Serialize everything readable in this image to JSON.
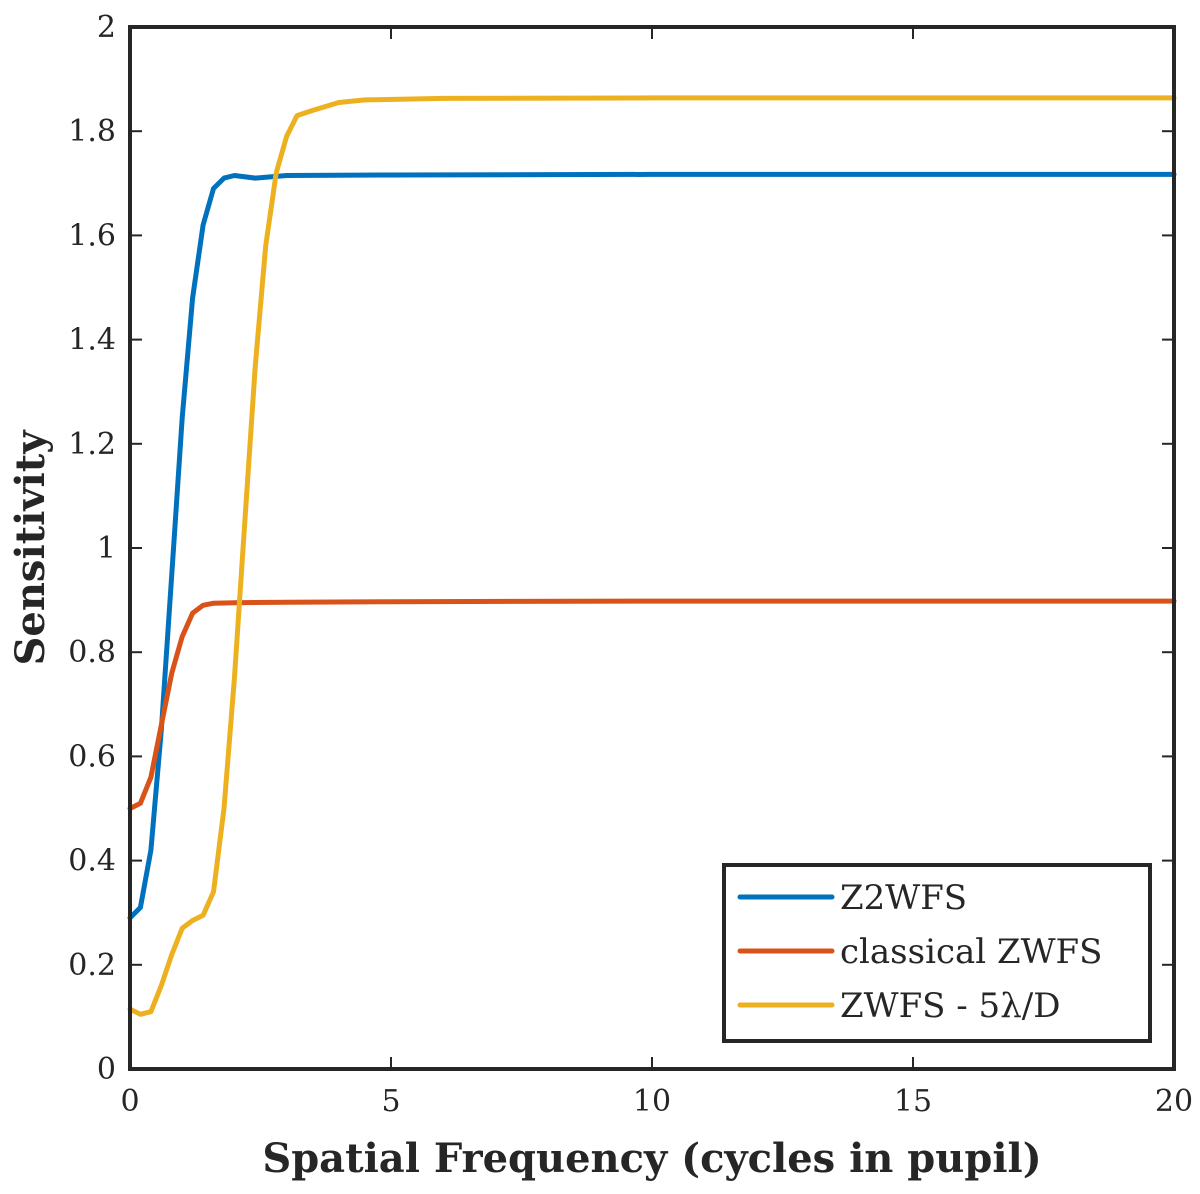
{
  "chart_data": {
    "type": "line",
    "xlabel": "Spatial Frequency (cycles in pupil)",
    "ylabel": "Sensitivity",
    "xlim": [
      0,
      20
    ],
    "ylim": [
      0,
      2
    ],
    "xticks": [
      0,
      5,
      10,
      15,
      20
    ],
    "xtick_labels": [
      "0",
      "5",
      "10",
      "15",
      "20"
    ],
    "yticks": [
      0,
      0.2,
      0.4,
      0.6,
      0.8,
      1,
      1.2,
      1.4,
      1.6,
      1.8,
      2
    ],
    "ytick_labels": [
      "0",
      "0.2",
      "0.4",
      "0.6",
      "0.8",
      "1",
      "1.2",
      "1.4",
      "1.6",
      "1.8",
      "2"
    ],
    "grid": false,
    "legend_position": "bottom-right",
    "series": [
      {
        "name": "Z2WFS",
        "color": "#0072BD",
        "x": [
          0,
          0.2,
          0.4,
          0.6,
          0.8,
          1.0,
          1.2,
          1.4,
          1.6,
          1.8,
          2.0,
          2.4,
          3,
          5,
          10,
          15,
          20
        ],
        "y": [
          0.29,
          0.31,
          0.42,
          0.65,
          0.95,
          1.25,
          1.48,
          1.62,
          1.69,
          1.71,
          1.715,
          1.71,
          1.715,
          1.716,
          1.717,
          1.717,
          1.717
        ]
      },
      {
        "name": "classical ZWFS",
        "color": "#D95319",
        "x": [
          0,
          0.2,
          0.4,
          0.6,
          0.8,
          1.0,
          1.2,
          1.4,
          1.6,
          2,
          3,
          5,
          10,
          15,
          20
        ],
        "y": [
          0.5,
          0.51,
          0.56,
          0.66,
          0.76,
          0.83,
          0.875,
          0.89,
          0.894,
          0.895,
          0.896,
          0.897,
          0.898,
          0.898,
          0.898
        ]
      },
      {
        "name": "ZWFS - 5λ/D",
        "color": "#EDB120",
        "x": [
          0,
          0.2,
          0.4,
          0.6,
          0.8,
          1.0,
          1.2,
          1.4,
          1.6,
          1.8,
          2.0,
          2.2,
          2.4,
          2.6,
          2.8,
          3.0,
          3.2,
          3.5,
          4.0,
          4.5,
          6,
          10,
          15,
          20
        ],
        "y": [
          0.115,
          0.105,
          0.11,
          0.16,
          0.22,
          0.27,
          0.285,
          0.295,
          0.34,
          0.5,
          0.75,
          1.05,
          1.35,
          1.58,
          1.72,
          1.79,
          1.83,
          1.84,
          1.855,
          1.86,
          1.863,
          1.864,
          1.864,
          1.864
        ]
      }
    ]
  }
}
